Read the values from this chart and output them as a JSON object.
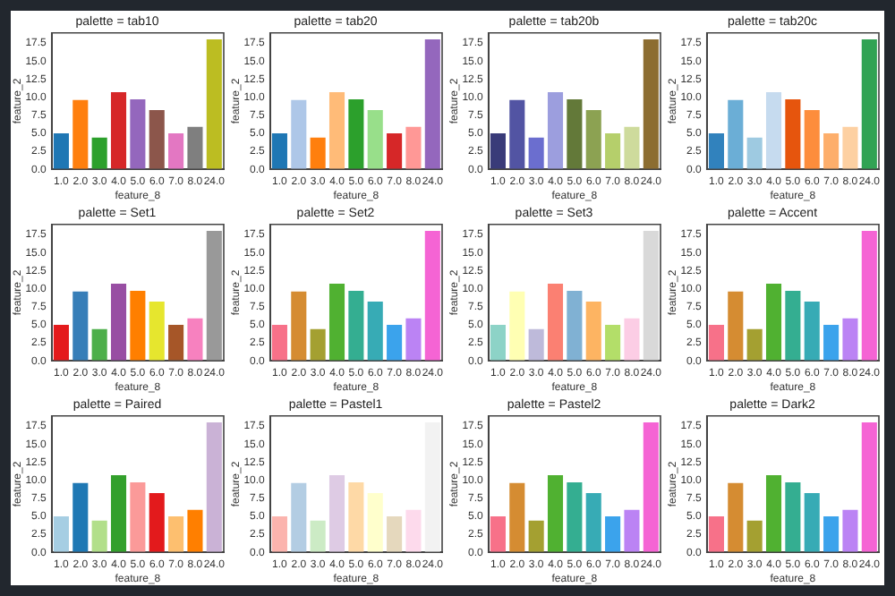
{
  "chart_data": [
    {
      "type": "bar",
      "title": "palette = tab10",
      "xlabel": "feature_8",
      "ylabel": "feature_2",
      "categories": [
        "1.0",
        "2.0",
        "3.0",
        "4.0",
        "5.0",
        "6.0",
        "7.0",
        "8.0",
        "24.0"
      ],
      "values": [
        5.0,
        9.6,
        4.4,
        10.7,
        9.7,
        8.2,
        5.0,
        5.9,
        18.0
      ],
      "colors": [
        "#1f77b4",
        "#ff7f0e",
        "#2ca02c",
        "#d62728",
        "#9467bd",
        "#8c564b",
        "#e377c2",
        "#7f7f7f",
        "#bcbd22"
      ],
      "ylim": [
        0,
        18.9
      ],
      "yticks": [
        {
          "value": 0,
          "label": "0.0"
        },
        {
          "value": 2.5,
          "label": "2.5"
        },
        {
          "value": 5,
          "label": "5.0"
        },
        {
          "value": 7.5,
          "label": "7.5"
        },
        {
          "value": 10,
          "label": "10.0"
        },
        {
          "value": 12.5,
          "label": "12.5"
        },
        {
          "value": 15,
          "label": "15.0"
        },
        {
          "value": 17.5,
          "label": "17.5"
        }
      ]
    },
    {
      "type": "bar",
      "title": "palette = tab20",
      "xlabel": "feature_8",
      "ylabel": "feature_2",
      "categories": [
        "1.0",
        "2.0",
        "3.0",
        "4.0",
        "5.0",
        "6.0",
        "7.0",
        "8.0",
        "24.0"
      ],
      "values": [
        5.0,
        9.6,
        4.4,
        10.7,
        9.7,
        8.2,
        5.0,
        5.9,
        18.0
      ],
      "colors": [
        "#1f77b4",
        "#aec7e8",
        "#ff7f0e",
        "#ffbb78",
        "#2ca02c",
        "#98df8a",
        "#d62728",
        "#ff9896",
        "#9467bd"
      ],
      "ylim": [
        0,
        18.9
      ],
      "yticks": [
        {
          "value": 0,
          "label": "0.0"
        },
        {
          "value": 2.5,
          "label": "2.5"
        },
        {
          "value": 5,
          "label": "5.0"
        },
        {
          "value": 7.5,
          "label": "7.5"
        },
        {
          "value": 10,
          "label": "10.0"
        },
        {
          "value": 12.5,
          "label": "12.5"
        },
        {
          "value": 15,
          "label": "15.0"
        },
        {
          "value": 17.5,
          "label": "17.5"
        }
      ]
    },
    {
      "type": "bar",
      "title": "palette = tab20b",
      "xlabel": "feature_8",
      "ylabel": "feature_2",
      "categories": [
        "1.0",
        "2.0",
        "3.0",
        "4.0",
        "5.0",
        "6.0",
        "7.0",
        "8.0",
        "24.0"
      ],
      "values": [
        5.0,
        9.6,
        4.4,
        10.7,
        9.7,
        8.2,
        5.0,
        5.9,
        18.0
      ],
      "colors": [
        "#393b79",
        "#5254a3",
        "#6b6ecf",
        "#9c9ede",
        "#637939",
        "#8ca252",
        "#b5cf6b",
        "#cedb9c",
        "#8c6d31"
      ],
      "ylim": [
        0,
        18.9
      ],
      "yticks": [
        {
          "value": 0,
          "label": "0.0"
        },
        {
          "value": 2.5,
          "label": "2.5"
        },
        {
          "value": 5,
          "label": "5.0"
        },
        {
          "value": 7.5,
          "label": "7.5"
        },
        {
          "value": 10,
          "label": "10.0"
        },
        {
          "value": 12.5,
          "label": "12.5"
        },
        {
          "value": 15,
          "label": "15.0"
        },
        {
          "value": 17.5,
          "label": "17.5"
        }
      ]
    },
    {
      "type": "bar",
      "title": "palette = tab20c",
      "xlabel": "feature_8",
      "ylabel": "feature_2",
      "categories": [
        "1.0",
        "2.0",
        "3.0",
        "4.0",
        "5.0",
        "6.0",
        "7.0",
        "8.0",
        "24.0"
      ],
      "values": [
        5.0,
        9.6,
        4.4,
        10.7,
        9.7,
        8.2,
        5.0,
        5.9,
        18.0
      ],
      "colors": [
        "#3182bd",
        "#6baed6",
        "#9ecae1",
        "#c6dbef",
        "#e6550d",
        "#fd8d3c",
        "#fdae6b",
        "#fdd0a2",
        "#31a354"
      ],
      "ylim": [
        0,
        18.9
      ],
      "yticks": [
        {
          "value": 0,
          "label": "0.0"
        },
        {
          "value": 2.5,
          "label": "2.5"
        },
        {
          "value": 5,
          "label": "5.0"
        },
        {
          "value": 7.5,
          "label": "7.5"
        },
        {
          "value": 10,
          "label": "10.0"
        },
        {
          "value": 12.5,
          "label": "12.5"
        },
        {
          "value": 15,
          "label": "15.0"
        },
        {
          "value": 17.5,
          "label": "17.5"
        }
      ]
    },
    {
      "type": "bar",
      "title": "palette = Set1",
      "xlabel": "feature_8",
      "ylabel": "feature_2",
      "categories": [
        "1.0",
        "2.0",
        "3.0",
        "4.0",
        "5.0",
        "6.0",
        "7.0",
        "8.0",
        "24.0"
      ],
      "values": [
        5.0,
        9.6,
        4.4,
        10.7,
        9.7,
        8.2,
        5.0,
        5.9,
        18.0
      ],
      "colors": [
        "#e41a1c",
        "#377eb8",
        "#4daf4a",
        "#984ea3",
        "#ff7f00",
        "#e6e62e",
        "#a65628",
        "#f781bf",
        "#999999"
      ],
      "ylim": [
        0,
        18.9
      ],
      "yticks": [
        {
          "value": 0,
          "label": "0.0"
        },
        {
          "value": 2.5,
          "label": "2.5"
        },
        {
          "value": 5,
          "label": "5.0"
        },
        {
          "value": 7.5,
          "label": "7.5"
        },
        {
          "value": 10,
          "label": "10.0"
        },
        {
          "value": 12.5,
          "label": "12.5"
        },
        {
          "value": 15,
          "label": "15.0"
        },
        {
          "value": 17.5,
          "label": "17.5"
        }
      ]
    },
    {
      "type": "bar",
      "title": "palette = Set2",
      "xlabel": "feature_8",
      "ylabel": "feature_2",
      "categories": [
        "1.0",
        "2.0",
        "3.0",
        "4.0",
        "5.0",
        "6.0",
        "7.0",
        "8.0",
        "24.0"
      ],
      "values": [
        5.0,
        9.6,
        4.4,
        10.7,
        9.7,
        8.2,
        5.0,
        5.9,
        18.0
      ],
      "colors": [
        "#f77189",
        "#d58c32",
        "#a4a031",
        "#50b131",
        "#34ae91",
        "#37abb5",
        "#3ba3ec",
        "#bb83f4",
        "#f564d4"
      ],
      "ylim": [
        0,
        18.9
      ],
      "yticks": [
        {
          "value": 0,
          "label": "0.0"
        },
        {
          "value": 2.5,
          "label": "2.5"
        },
        {
          "value": 5,
          "label": "5.0"
        },
        {
          "value": 7.5,
          "label": "7.5"
        },
        {
          "value": 10,
          "label": "10.0"
        },
        {
          "value": 12.5,
          "label": "12.5"
        },
        {
          "value": 15,
          "label": "15.0"
        },
        {
          "value": 17.5,
          "label": "17.5"
        }
      ]
    },
    {
      "type": "bar",
      "title": "palette = Set3",
      "xlabel": "feature_8",
      "ylabel": "feature_2",
      "categories": [
        "1.0",
        "2.0",
        "3.0",
        "4.0",
        "5.0",
        "6.0",
        "7.0",
        "8.0",
        "24.0"
      ],
      "values": [
        5.0,
        9.6,
        4.4,
        10.7,
        9.7,
        8.2,
        5.0,
        5.9,
        18.0
      ],
      "colors": [
        "#8dd3c7",
        "#ffffb3",
        "#bebada",
        "#fb8072",
        "#80b1d3",
        "#fdb462",
        "#b3de69",
        "#fccde5",
        "#d9d9d9"
      ],
      "ylim": [
        0,
        18.9
      ],
      "yticks": [
        {
          "value": 0,
          "label": "0.0"
        },
        {
          "value": 2.5,
          "label": "2.5"
        },
        {
          "value": 5,
          "label": "5.0"
        },
        {
          "value": 7.5,
          "label": "7.5"
        },
        {
          "value": 10,
          "label": "10.0"
        },
        {
          "value": 12.5,
          "label": "12.5"
        },
        {
          "value": 15,
          "label": "15.0"
        },
        {
          "value": 17.5,
          "label": "17.5"
        }
      ]
    },
    {
      "type": "bar",
      "title": "palette = Accent",
      "xlabel": "feature_8",
      "ylabel": "feature_2",
      "categories": [
        "1.0",
        "2.0",
        "3.0",
        "4.0",
        "5.0",
        "6.0",
        "7.0",
        "8.0",
        "24.0"
      ],
      "values": [
        5.0,
        9.6,
        4.4,
        10.7,
        9.7,
        8.2,
        5.0,
        5.9,
        18.0
      ],
      "colors": [
        "#f77189",
        "#d58c32",
        "#a4a031",
        "#50b131",
        "#34ae91",
        "#37abb5",
        "#3ba3ec",
        "#bb83f4",
        "#f564d4"
      ],
      "ylim": [
        0,
        18.9
      ],
      "yticks": [
        {
          "value": 0,
          "label": "0.0"
        },
        {
          "value": 2.5,
          "label": "2.5"
        },
        {
          "value": 5,
          "label": "5.0"
        },
        {
          "value": 7.5,
          "label": "7.5"
        },
        {
          "value": 10,
          "label": "10.0"
        },
        {
          "value": 12.5,
          "label": "12.5"
        },
        {
          "value": 15,
          "label": "15.0"
        },
        {
          "value": 17.5,
          "label": "17.5"
        }
      ]
    },
    {
      "type": "bar",
      "title": "palette = Paired",
      "xlabel": "feature_8",
      "ylabel": "feature_2",
      "categories": [
        "1.0",
        "2.0",
        "3.0",
        "4.0",
        "5.0",
        "6.0",
        "7.0",
        "8.0",
        "24.0"
      ],
      "values": [
        5.0,
        9.6,
        4.4,
        10.7,
        9.7,
        8.2,
        5.0,
        5.9,
        18.0
      ],
      "colors": [
        "#a6cee3",
        "#1f78b4",
        "#b2df8a",
        "#33a02c",
        "#fb9a99",
        "#e31a1c",
        "#fdbf6f",
        "#ff7f00",
        "#cab2d6"
      ],
      "ylim": [
        0,
        18.9
      ],
      "yticks": [
        {
          "value": 0,
          "label": "0.0"
        },
        {
          "value": 2.5,
          "label": "2.5"
        },
        {
          "value": 5,
          "label": "5.0"
        },
        {
          "value": 7.5,
          "label": "7.5"
        },
        {
          "value": 10,
          "label": "10.0"
        },
        {
          "value": 12.5,
          "label": "12.5"
        },
        {
          "value": 15,
          "label": "15.0"
        },
        {
          "value": 17.5,
          "label": "17.5"
        }
      ]
    },
    {
      "type": "bar",
      "title": "palette = Pastel1",
      "xlabel": "feature_8",
      "ylabel": "feature_2",
      "categories": [
        "1.0",
        "2.0",
        "3.0",
        "4.0",
        "5.0",
        "6.0",
        "7.0",
        "8.0",
        "24.0"
      ],
      "values": [
        5.0,
        9.6,
        4.4,
        10.7,
        9.7,
        8.2,
        5.0,
        5.9,
        18.0
      ],
      "colors": [
        "#fbb4ae",
        "#b3cde3",
        "#ccebc5",
        "#decbe4",
        "#fed9a6",
        "#ffffcc",
        "#e5d8bd",
        "#fddaec",
        "#f2f2f2"
      ],
      "ylim": [
        0,
        18.9
      ],
      "yticks": [
        {
          "value": 0,
          "label": "0.0"
        },
        {
          "value": 2.5,
          "label": "2.5"
        },
        {
          "value": 5,
          "label": "5.0"
        },
        {
          "value": 7.5,
          "label": "7.5"
        },
        {
          "value": 10,
          "label": "10.0"
        },
        {
          "value": 12.5,
          "label": "12.5"
        },
        {
          "value": 15,
          "label": "15.0"
        },
        {
          "value": 17.5,
          "label": "17.5"
        }
      ]
    },
    {
      "type": "bar",
      "title": "palette = Pastel2",
      "xlabel": "feature_8",
      "ylabel": "feature_2",
      "categories": [
        "1.0",
        "2.0",
        "3.0",
        "4.0",
        "5.0",
        "6.0",
        "7.0",
        "8.0",
        "24.0"
      ],
      "values": [
        5.0,
        9.6,
        4.4,
        10.7,
        9.7,
        8.2,
        5.0,
        5.9,
        18.0
      ],
      "colors": [
        "#f77189",
        "#d58c32",
        "#a4a031",
        "#50b131",
        "#34ae91",
        "#37abb5",
        "#3ba3ec",
        "#bb83f4",
        "#f564d4"
      ],
      "ylim": [
        0,
        18.9
      ],
      "yticks": [
        {
          "value": 0,
          "label": "0.0"
        },
        {
          "value": 2.5,
          "label": "2.5"
        },
        {
          "value": 5,
          "label": "5.0"
        },
        {
          "value": 7.5,
          "label": "7.5"
        },
        {
          "value": 10,
          "label": "10.0"
        },
        {
          "value": 12.5,
          "label": "12.5"
        },
        {
          "value": 15,
          "label": "15.0"
        },
        {
          "value": 17.5,
          "label": "17.5"
        }
      ]
    },
    {
      "type": "bar",
      "title": "palette = Dark2",
      "xlabel": "feature_8",
      "ylabel": "feature_2",
      "categories": [
        "1.0",
        "2.0",
        "3.0",
        "4.0",
        "5.0",
        "6.0",
        "7.0",
        "8.0",
        "24.0"
      ],
      "values": [
        5.0,
        9.6,
        4.4,
        10.7,
        9.7,
        8.2,
        5.0,
        5.9,
        18.0
      ],
      "colors": [
        "#f77189",
        "#d58c32",
        "#a4a031",
        "#50b131",
        "#34ae91",
        "#37abb5",
        "#3ba3ec",
        "#bb83f4",
        "#f564d4"
      ],
      "ylim": [
        0,
        18.9
      ],
      "yticks": [
        {
          "value": 0,
          "label": "0.0"
        },
        {
          "value": 2.5,
          "label": "2.5"
        },
        {
          "value": 5,
          "label": "5.0"
        },
        {
          "value": 7.5,
          "label": "7.5"
        },
        {
          "value": 10,
          "label": "10.0"
        },
        {
          "value": 12.5,
          "label": "12.5"
        },
        {
          "value": 15,
          "label": "15.0"
        },
        {
          "value": 17.5,
          "label": "17.5"
        }
      ]
    }
  ]
}
